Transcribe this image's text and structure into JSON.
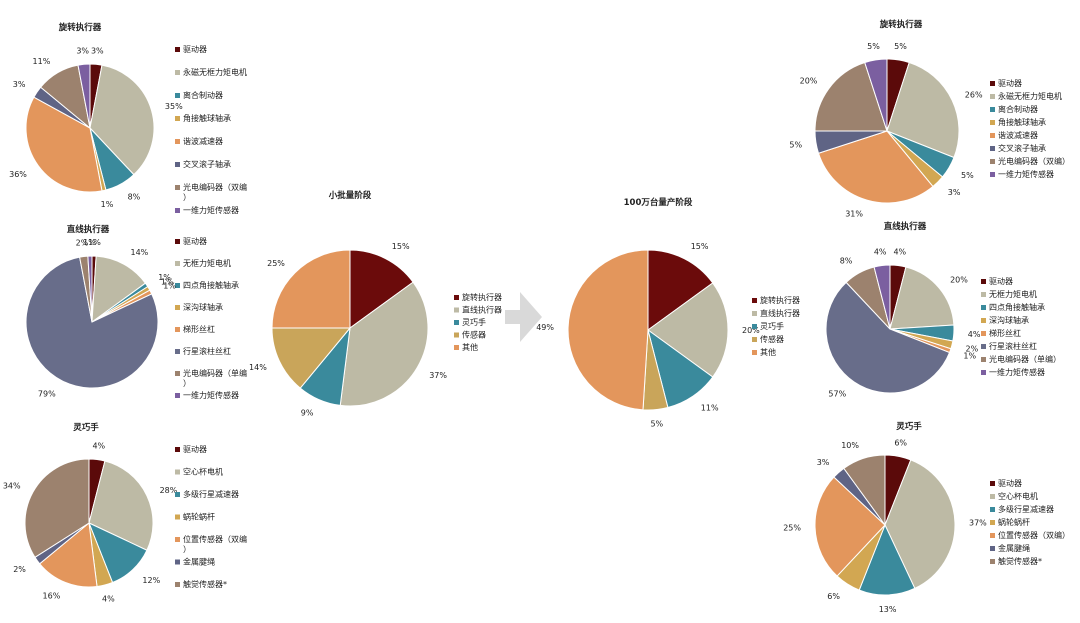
{
  "arrow_color": "#d9d9d9",
  "chart_data": [
    {
      "id": "rot_small",
      "type": "pie",
      "title": "旋转执行器",
      "slices": [
        {
          "label": "驱动器",
          "value": 3,
          "color": "#5b0a0a"
        },
        {
          "label": "永磁无框力矩电机",
          "value": 35,
          "color": "#bdbaa5"
        },
        {
          "label": "离合制动器",
          "value": 8,
          "color": "#3a8a9c"
        },
        {
          "label": "角接触球轴承",
          "value": 1,
          "color": "#d2a752"
        },
        {
          "label": "谐波减速器",
          "value": 36,
          "color": "#e3965c"
        },
        {
          "label": "交叉滚子轴承",
          "value": 3,
          "color": "#5f6485"
        },
        {
          "label": "光电编码器（双编）",
          "value": 11,
          "color": "#9c826e"
        },
        {
          "label": "一维力矩传感器",
          "value": 3,
          "color": "#7b5fa0"
        }
      ]
    },
    {
      "id": "lin_small",
      "type": "pie",
      "title": "直线执行器",
      "slices": [
        {
          "label": "驱动器",
          "value": 1,
          "pct": "1%",
          "color": "#5b0a0a"
        },
        {
          "label": "无框力矩电机",
          "value": 14,
          "pct": "14%",
          "color": "#bdbaa5"
        },
        {
          "label": "四点角接触轴承",
          "value": 1,
          "pct": "1%",
          "color": "#3a8a9c"
        },
        {
          "label": "深沟球轴承",
          "value": 1,
          "pct": "1%",
          "color": "#d2a752"
        },
        {
          "label": "梯形丝杠",
          "value": 1,
          "pct": "1%",
          "color": "#e3965c"
        },
        {
          "label": "行星滚柱丝杠",
          "value": 79,
          "pct": "79%",
          "color": "#686d8a"
        },
        {
          "label": "光电编码器（单编）",
          "value": 2,
          "pct": "2%",
          "color": "#9c826e"
        },
        {
          "label": "一维力矩传感器",
          "value": 1,
          "pct": "1%",
          "color": "#7b5fa0"
        }
      ]
    },
    {
      "id": "hand_small",
      "type": "pie",
      "title": "灵巧手",
      "slices": [
        {
          "label": "驱动器",
          "value": 4,
          "color": "#5b0a0a"
        },
        {
          "label": "空心杯电机",
          "value": 28,
          "color": "#bdbaa5"
        },
        {
          "label": "多级行星减速器",
          "value": 12,
          "color": "#3a8a9c"
        },
        {
          "label": "蜗轮蜗杆",
          "value": 4,
          "color": "#d2a752"
        },
        {
          "label": "位置传感器（双编）",
          "value": 16,
          "color": "#e3965c"
        },
        {
          "label": "金属腱绳",
          "value": 2,
          "color": "#5f6485"
        },
        {
          "label": "触觉传感器*",
          "value": 34,
          "color": "#9c826e"
        }
      ]
    },
    {
      "id": "total_small",
      "type": "pie",
      "title": "小批量阶段",
      "slices": [
        {
          "label": "旋转执行器",
          "value": 15,
          "color": "#6b0b0b"
        },
        {
          "label": "直线执行器",
          "value": 37,
          "color": "#bdbaa5"
        },
        {
          "label": "灵巧手",
          "value": 9,
          "color": "#3a8a9c"
        },
        {
          "label": "传感器",
          "value": 14,
          "color": "#c9a55a"
        },
        {
          "label": "其他",
          "value": 25,
          "color": "#e3965c"
        }
      ]
    },
    {
      "id": "total_mass",
      "type": "pie",
      "title": "100万台量产阶段",
      "slices": [
        {
          "label": "旋转执行器",
          "value": 15,
          "color": "#6b0b0b"
        },
        {
          "label": "直线执行器",
          "value": 20,
          "color": "#bdbaa5"
        },
        {
          "label": "灵巧手",
          "value": 11,
          "color": "#3a8a9c"
        },
        {
          "label": "传感器",
          "value": 5,
          "color": "#c9a55a"
        },
        {
          "label": "其他",
          "value": 49,
          "color": "#e3965c"
        }
      ]
    },
    {
      "id": "rot_mass",
      "type": "pie",
      "title": "旋转执行器",
      "slices": [
        {
          "label": "驱动器",
          "value": 5,
          "color": "#5b0a0a"
        },
        {
          "label": "永磁无框力矩电机",
          "value": 26,
          "color": "#bdbaa5"
        },
        {
          "label": "离合制动器",
          "value": 5,
          "color": "#3a8a9c"
        },
        {
          "label": "角接触球轴承",
          "value": 3,
          "color": "#d2a752"
        },
        {
          "label": "谐波减速器",
          "value": 31,
          "color": "#e3965c"
        },
        {
          "label": "交叉滚子轴承",
          "value": 5,
          "color": "#5f6485"
        },
        {
          "label": "光电编码器（双编）",
          "value": 20,
          "color": "#9c826e"
        },
        {
          "label": "一维力矩传感器",
          "value": 5,
          "color": "#7b5fa0"
        }
      ]
    },
    {
      "id": "lin_mass",
      "type": "pie",
      "title": "直线执行器",
      "slices": [
        {
          "label": "驱动器",
          "value": 4,
          "color": "#5b0a0a"
        },
        {
          "label": "无框力矩电机",
          "value": 20,
          "color": "#bdbaa5"
        },
        {
          "label": "四点角接触轴承",
          "value": 4,
          "color": "#3a8a9c"
        },
        {
          "label": "深沟球轴承",
          "value": 2,
          "color": "#d2a752"
        },
        {
          "label": "梯形丝杠",
          "value": 1,
          "color": "#e3965c"
        },
        {
          "label": "行星滚柱丝杠",
          "value": 57,
          "color": "#686d8a"
        },
        {
          "label": "光电编码器（单编）",
          "value": 8,
          "color": "#9c826e"
        },
        {
          "label": "一维力矩传感器",
          "value": 4,
          "color": "#7b5fa0"
        }
      ]
    },
    {
      "id": "hand_mass",
      "type": "pie",
      "title": "灵巧手",
      "slices": [
        {
          "label": "驱动器",
          "value": 6,
          "color": "#5b0a0a"
        },
        {
          "label": "空心杯电机",
          "value": 37,
          "color": "#bdbaa5"
        },
        {
          "label": "多级行星减速器",
          "value": 13,
          "color": "#3a8a9c"
        },
        {
          "label": "蜗轮蜗杆",
          "value": 6,
          "color": "#d2a752"
        },
        {
          "label": "位置传感器（双编）",
          "value": 25,
          "color": "#e3965c"
        },
        {
          "label": "金属腱绳",
          "value": 3,
          "color": "#5f6485"
        },
        {
          "label": "触觉传感器*",
          "value": 10,
          "color": "#9c826e"
        }
      ]
    }
  ]
}
